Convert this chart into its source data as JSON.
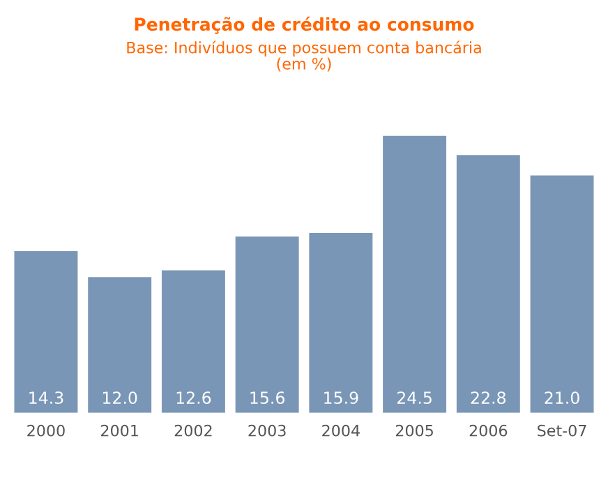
{
  "chart_data": {
    "type": "bar",
    "title": "Penetração de crédito ao consumo",
    "subtitle": "Base: Indivíduos que possuem conta bancária\n(em %)",
    "categories": [
      "2000",
      "2001",
      "2002",
      "2003",
      "2004",
      "2005",
      "2006",
      "Set-07"
    ],
    "values": [
      14.3,
      12.0,
      12.6,
      15.6,
      15.9,
      24.5,
      22.8,
      21.0
    ],
    "value_labels": [
      "14.3",
      "12.0",
      "12.6",
      "15.6",
      "15.9",
      "24.5",
      "22.8",
      "21.0"
    ],
    "color": "#7a96b6",
    "grid": false,
    "legend": false
  }
}
